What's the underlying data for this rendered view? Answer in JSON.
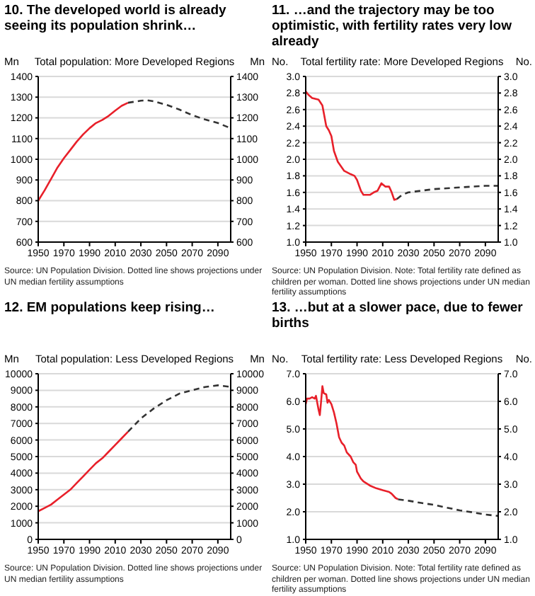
{
  "chart_data": [
    {
      "type": "line",
      "title": "10. The developed world is already seeing its population shrink…",
      "subtitle": "Total population: More Developed Regions",
      "ylabel": "Mn",
      "y2label": "Mn",
      "annotations": [
        "Source: UN Population Division. Dotted line shows projections under UN median fertility assumptions"
      ],
      "xlim": [
        1950,
        2100
      ],
      "xticks": [
        1950,
        1970,
        1990,
        2010,
        2030,
        2050,
        2070,
        2090
      ],
      "ylim": [
        600,
        1400
      ],
      "yticks": [
        600,
        700,
        800,
        900,
        1000,
        1100,
        1200,
        1300,
        1400
      ],
      "y2lim": [
        600,
        1400
      ],
      "y2ticks": [
        600,
        700,
        800,
        900,
        1000,
        1100,
        1200,
        1300,
        1400
      ],
      "grid": "y",
      "series": [
        {
          "color": "#e8202a",
          "line_style": "solid",
          "x": [
            1950,
            1955,
            1960,
            1965,
            1970,
            1975,
            1980,
            1985,
            1990,
            1995,
            2000,
            2005,
            2010,
            2015,
            2020
          ],
          "values": [
            800,
            850,
            905,
            960,
            1005,
            1045,
            1085,
            1120,
            1150,
            1175,
            1190,
            1210,
            1235,
            1258,
            1273
          ]
        },
        {
          "color": "#333333",
          "line_style": "dashed",
          "x": [
            2020,
            2030,
            2035,
            2040,
            2050,
            2060,
            2070,
            2080,
            2090,
            2100
          ],
          "values": [
            1273,
            1283,
            1285,
            1280,
            1263,
            1240,
            1213,
            1192,
            1175,
            1150
          ]
        }
      ]
    },
    {
      "type": "line",
      "title": "11. …and the trajectory may be too optimistic, with fertility rates very low already",
      "subtitle": "Total fertility rate: More Developed Regions",
      "ylabel": "No.",
      "y2label": "No.",
      "annotations": [
        "Source: UN Population Division. Note: Total fertility rate defined as children per woman. Dotted line shows projections under UN median fertility assumptions"
      ],
      "xlim": [
        1950,
        2100
      ],
      "xticks": [
        1950,
        1970,
        1990,
        2010,
        2030,
        2050,
        2070,
        2090
      ],
      "ylim": [
        1,
        3
      ],
      "yticks": [
        {
          "value": 1,
          "label": "1.0"
        },
        1.2,
        1.4,
        1.6,
        1.8,
        {
          "value": 2,
          "label": "2.0"
        },
        2.2,
        2.4,
        2.6,
        2.8,
        {
          "value": 3,
          "label": "3.0"
        }
      ],
      "y2lim": [
        1,
        3
      ],
      "y2ticks": [
        {
          "value": 1,
          "label": "1.0"
        },
        1.2,
        1.4,
        1.6,
        1.8,
        {
          "value": 2,
          "label": "2.0"
        },
        2.2,
        2.4,
        2.6,
        2.8,
        {
          "value": 3,
          "label": "3.0"
        }
      ],
      "grid": "y",
      "series": [
        {
          "color": "#e8202a",
          "line_style": "solid",
          "x": [
            1950,
            1952,
            1955,
            1960,
            1963,
            1966,
            1968,
            1970,
            1972,
            1975,
            1980,
            1985,
            1988,
            1990,
            1993,
            1995,
            2000,
            2003,
            2006,
            2009,
            2012,
            2015,
            2017,
            2019,
            2021
          ],
          "values": [
            2.82,
            2.78,
            2.74,
            2.72,
            2.65,
            2.4,
            2.35,
            2.28,
            2.1,
            1.97,
            1.86,
            1.82,
            1.8,
            1.75,
            1.62,
            1.57,
            1.57,
            1.6,
            1.62,
            1.71,
            1.67,
            1.67,
            1.6,
            1.51,
            1.52
          ]
        },
        {
          "color": "#333333",
          "line_style": "dashed",
          "x": [
            2021,
            2025,
            2030,
            2040,
            2050,
            2060,
            2070,
            2080,
            2090,
            2100
          ],
          "values": [
            1.52,
            1.57,
            1.6,
            1.62,
            1.64,
            1.65,
            1.66,
            1.67,
            1.68,
            1.68
          ]
        }
      ]
    },
    {
      "type": "line",
      "title": "12. EM populations keep rising…",
      "subtitle": "Total population: Less Developed Regions",
      "ylabel": "Mn",
      "y2label": "Mn",
      "annotations": [
        "Source: UN Population Division. Dotted line shows projections under UN median fertility assumptions"
      ],
      "xlim": [
        1950,
        2100
      ],
      "xticks": [
        1950,
        1970,
        1990,
        2010,
        2030,
        2050,
        2070,
        2090
      ],
      "ylim": [
        0,
        10000
      ],
      "yticks": [
        0,
        1000,
        2000,
        3000,
        4000,
        5000,
        6000,
        7000,
        8000,
        9000,
        10000
      ],
      "y2lim": [
        0,
        10000
      ],
      "y2ticks": [
        0,
        1000,
        2000,
        3000,
        4000,
        5000,
        6000,
        7000,
        8000,
        9000,
        10000
      ],
      "grid": "y",
      "series": [
        {
          "color": "#e8202a",
          "line_style": "solid",
          "x": [
            1950,
            1955,
            1960,
            1965,
            1970,
            1975,
            1980,
            1985,
            1990,
            1995,
            2000,
            2005,
            2010,
            2015,
            2020
          ],
          "values": [
            1700,
            1900,
            2100,
            2400,
            2700,
            3000,
            3400,
            3800,
            4200,
            4600,
            4900,
            5300,
            5700,
            6100,
            6500
          ]
        },
        {
          "color": "#333333",
          "line_style": "dashed",
          "x": [
            2020,
            2030,
            2040,
            2050,
            2060,
            2070,
            2080,
            2090,
            2100
          ],
          "values": [
            6500,
            7300,
            7900,
            8400,
            8800,
            9000,
            9200,
            9300,
            9200
          ]
        }
      ]
    },
    {
      "type": "line",
      "title": "13. …but at a slower pace, due to fewer births",
      "subtitle": "Total fertility rate: Less Developed Regions",
      "ylabel": "No.",
      "y2label": "No.",
      "annotations": [
        "Source: UN Population Division. Note: Total fertility rate defined as children per woman. Dotted line shows projections under UN median fertility assumptions"
      ],
      "xlim": [
        1950,
        2100
      ],
      "xticks": [
        1950,
        1970,
        1990,
        2010,
        2030,
        2050,
        2070,
        2090
      ],
      "ylim": [
        1,
        7
      ],
      "yticks": [
        {
          "value": 1,
          "label": "1.0"
        },
        {
          "value": 2,
          "label": "2.0"
        },
        {
          "value": 3,
          "label": "3.0"
        },
        {
          "value": 4,
          "label": "4.0"
        },
        {
          "value": 5,
          "label": "5.0"
        },
        {
          "value": 6,
          "label": "6.0"
        },
        {
          "value": 7,
          "label": "7.0"
        }
      ],
      "y2lim": [
        1,
        7
      ],
      "y2ticks": [
        {
          "value": 1,
          "label": "1.0"
        },
        {
          "value": 2,
          "label": "2.0"
        },
        {
          "value": 3,
          "label": "3.0"
        },
        {
          "value": 4,
          "label": "4.0"
        },
        {
          "value": 5,
          "label": "5.0"
        },
        {
          "value": 6,
          "label": "6.0"
        },
        {
          "value": 7,
          "label": "7.0"
        }
      ],
      "grid": "y",
      "series": [
        {
          "color": "#e8202a",
          "line_style": "solid",
          "x": [
            1950,
            1951,
            1953,
            1955,
            1957,
            1958,
            1960,
            1961,
            1962,
            1963,
            1964,
            1966,
            1967,
            1968,
            1970,
            1972,
            1974,
            1976,
            1978,
            1980,
            1982,
            1985,
            1987,
            1989,
            1990,
            1993,
            1995,
            2000,
            2005,
            2010,
            2015,
            2017,
            2020,
            2022
          ],
          "values": [
            5.9,
            6.1,
            6.1,
            6.15,
            6.1,
            6.2,
            5.7,
            5.5,
            6.0,
            6.55,
            6.3,
            6.25,
            5.95,
            6.05,
            5.9,
            5.6,
            5.2,
            4.7,
            4.5,
            4.4,
            4.15,
            4.0,
            3.8,
            3.7,
            3.45,
            3.2,
            3.1,
            2.95,
            2.85,
            2.78,
            2.72,
            2.65,
            2.5,
            2.45
          ]
        },
        {
          "color": "#333333",
          "line_style": "dashed",
          "x": [
            2022,
            2030,
            2040,
            2050,
            2060,
            2070,
            2080,
            2090,
            2100
          ],
          "values": [
            2.45,
            2.4,
            2.32,
            2.25,
            2.15,
            2.05,
            1.98,
            1.9,
            1.85
          ]
        }
      ]
    }
  ]
}
